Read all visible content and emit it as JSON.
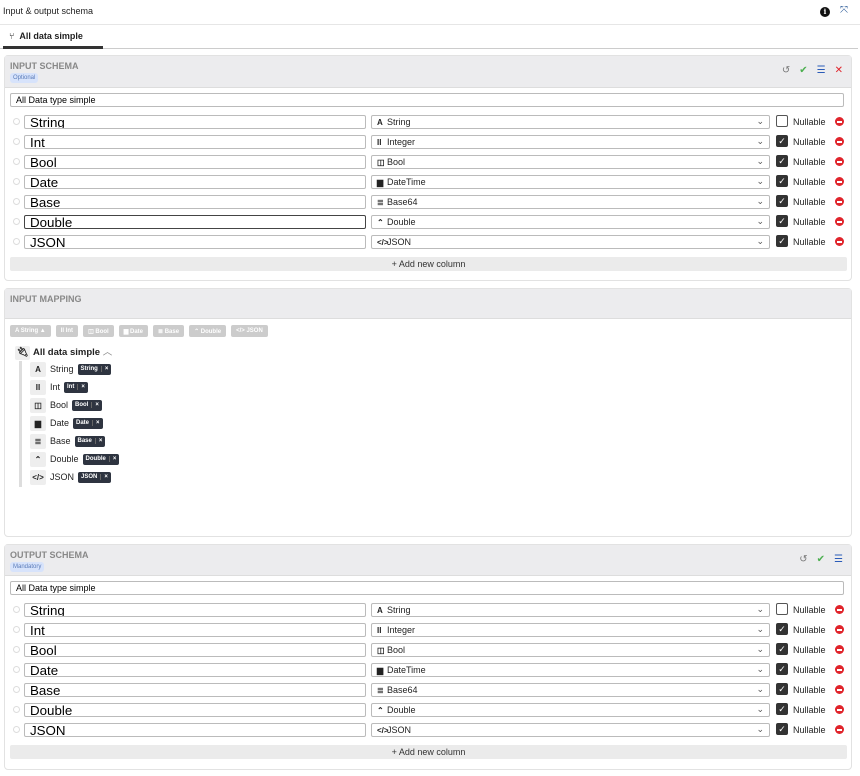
{
  "header": {
    "title": "Input & output schema",
    "info_icon": "info-icon",
    "expand_icon": "expand-icon"
  },
  "tab": {
    "label": "All data simple",
    "icon": "fork-icon"
  },
  "input_schema": {
    "title": "INPUT SCHEMA",
    "badge": "Optional",
    "name_value": "All Data type simple",
    "add_label": "Add new column",
    "rows": [
      {
        "name": "String",
        "type": "String",
        "icon": "A",
        "nullable": false,
        "focused": false
      },
      {
        "name": "Int",
        "type": "Integer",
        "icon": "II",
        "nullable": true,
        "focused": false
      },
      {
        "name": "Bool",
        "type": "Bool",
        "icon": "◫",
        "nullable": true,
        "focused": false
      },
      {
        "name": "Date",
        "type": "DateTime",
        "icon": "▆",
        "nullable": true,
        "focused": false
      },
      {
        "name": "Base",
        "type": "Base64",
        "icon": "≣",
        "nullable": true,
        "focused": false
      },
      {
        "name": "Double",
        "type": "Double",
        "icon": "⌃",
        "nullable": true,
        "focused": true
      },
      {
        "name": "JSON",
        "type": "JSON",
        "icon": "</>",
        "nullable": true,
        "focused": false
      }
    ]
  },
  "input_mapping": {
    "title": "INPUT MAPPING",
    "chips": [
      "A String ▲",
      "II Int",
      "◫ Bool",
      "▆ Date",
      "≣ Base",
      "⌃ Double",
      "</> JSON"
    ],
    "root": "All data simple",
    "items": [
      {
        "label": "String",
        "icon": "A",
        "tag": "String"
      },
      {
        "label": "Int",
        "icon": "II",
        "tag": "Int"
      },
      {
        "label": "Bool",
        "icon": "◫",
        "tag": "Bool"
      },
      {
        "label": "Date",
        "icon": "▆",
        "tag": "Date"
      },
      {
        "label": "Base",
        "icon": "≣",
        "tag": "Base"
      },
      {
        "label": "Double",
        "icon": "⌃",
        "tag": "Double"
      },
      {
        "label": "JSON",
        "icon": "</>",
        "tag": "JSON"
      }
    ]
  },
  "output_schema": {
    "title": "OUTPUT SCHEMA",
    "badge": "Mandatory",
    "name_value": "All Data type simple",
    "add_label": "Add new column",
    "rows": [
      {
        "name": "String",
        "type": "String",
        "icon": "A",
        "nullable": false,
        "focused": false
      },
      {
        "name": "Int",
        "type": "Integer",
        "icon": "II",
        "nullable": true,
        "focused": false
      },
      {
        "name": "Bool",
        "type": "Bool",
        "icon": "◫",
        "nullable": true,
        "focused": false
      },
      {
        "name": "Date",
        "type": "DateTime",
        "icon": "▆",
        "nullable": true,
        "focused": false
      },
      {
        "name": "Base",
        "type": "Base64",
        "icon": "≣",
        "nullable": true,
        "focused": false
      },
      {
        "name": "Double",
        "type": "Double",
        "icon": "⌃",
        "nullable": true,
        "focused": false
      },
      {
        "name": "JSON",
        "type": "JSON",
        "icon": "</>",
        "nullable": true,
        "focused": false
      }
    ]
  },
  "labels": {
    "nullable": "Nullable",
    "plus": "+",
    "close": "×",
    "check": "✓",
    "chevron": "⌄"
  },
  "colors": {
    "accent": "#2a5bb8",
    "danger": "#e0242b",
    "success": "#4caf50"
  }
}
